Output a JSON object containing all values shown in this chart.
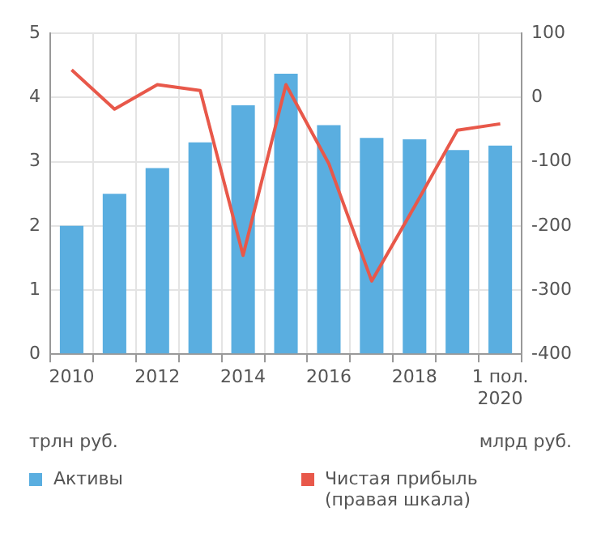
{
  "chart_data": {
    "type": "bar",
    "categories": [
      "2010",
      null,
      "2012",
      null,
      "2014",
      null,
      "2016",
      null,
      "2018",
      null,
      "1 пол. 2020"
    ],
    "series": [
      {
        "name": "Активы",
        "color": "#5aaee0",
        "values": [
          2.0,
          2.5,
          2.9,
          3.3,
          3.88,
          4.37,
          3.57,
          3.37,
          3.35,
          3.18,
          3.25
        ]
      },
      {
        "name": "Чистая прибыль (правая шкала)",
        "type": "line",
        "axis": "y2",
        "color": "#e8584a",
        "values": [
          43,
          -18,
          20,
          11,
          -246,
          20,
          -103,
          -286,
          -170,
          -51,
          -41
        ]
      }
    ],
    "ylabel": "трлн руб.",
    "y2label": "млрд руб.",
    "ylim": [
      0,
      5
    ],
    "yticks": [
      0,
      1,
      2,
      3,
      4,
      5
    ],
    "y2lim": [
      -400,
      100
    ],
    "y2ticks": [
      -400,
      -300,
      -200,
      -100,
      0,
      100
    ],
    "grid": true,
    "legend": "bottom",
    "marker": "none"
  }
}
